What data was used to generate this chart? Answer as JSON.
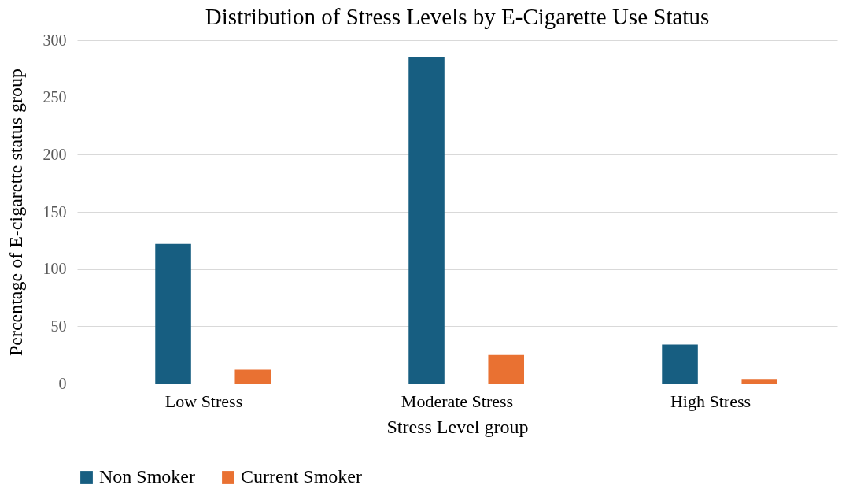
{
  "chart_data": {
    "type": "bar",
    "title": "Distribution of Stress Levels by E-Cigarette Use Status",
    "xlabel": "Stress Level group",
    "ylabel": "Percentage of E-cigarette status group",
    "categories": [
      "Low Stress",
      "Moderate Stress",
      "High Stress"
    ],
    "series": [
      {
        "name": "Non Smoker",
        "color": "#175e81",
        "values": [
          122,
          285,
          34
        ]
      },
      {
        "name": "Current Smoker",
        "color": "#e97132",
        "values": [
          12,
          25,
          4
        ]
      }
    ],
    "ylim": [
      0,
      300
    ],
    "yticks": [
      0,
      50,
      100,
      150,
      200,
      250,
      300
    ],
    "grid": "y",
    "legend": "bottom"
  }
}
